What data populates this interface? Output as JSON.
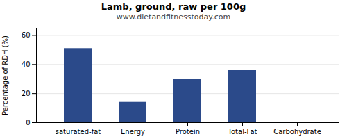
{
  "chart_data": {
    "type": "bar",
    "title": "Lamb, ground, raw per 100g",
    "subtitle": "www.dietandfitnesstoday.com",
    "categories": [
      "saturated-fat",
      "Energy",
      "Protein",
      "Total-Fat",
      "Carbohydrate"
    ],
    "values": [
      51,
      14,
      30,
      36,
      0.4
    ],
    "color": "#2b4a8a",
    "ylabel": "Percentage of RDH (%)",
    "ylim": [
      0,
      65
    ],
    "yticks": [
      0,
      20,
      40,
      60
    ],
    "grid": true
  }
}
